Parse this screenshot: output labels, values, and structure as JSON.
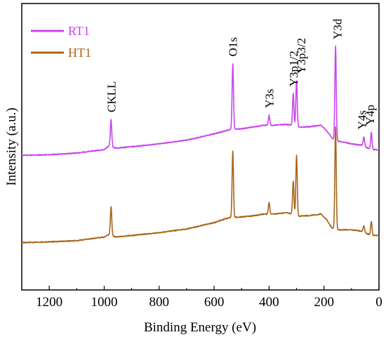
{
  "chart_data": {
    "type": "line",
    "xlabel": "Binding Energy (eV)",
    "ylabel": "Intensity (a.u.)",
    "xlim": [
      1300,
      0
    ],
    "x_reversed": true,
    "xticks": [
      1200,
      1000,
      800,
      600,
      400,
      200,
      0
    ],
    "ylim": [
      0,
      100
    ],
    "yticks_shown": false,
    "grid": false,
    "legend_position": "top-left",
    "series": [
      {
        "name": "RT1",
        "color": "#cc44ee",
        "baseline": [
          [
            1300,
            47.0
          ],
          [
            1200,
            47.2
          ],
          [
            1100,
            47.8
          ],
          [
            1000,
            49.0
          ],
          [
            980,
            50.5
          ],
          [
            960,
            49.5
          ],
          [
            900,
            50.0
          ],
          [
            800,
            51.0
          ],
          [
            700,
            52.3
          ],
          [
            600,
            54.5
          ],
          [
            560,
            55.5
          ],
          [
            540,
            56.0
          ],
          [
            500,
            56.3
          ],
          [
            450,
            57.0
          ],
          [
            420,
            57.5
          ],
          [
            380,
            57.5
          ],
          [
            340,
            57.8
          ],
          [
            310,
            57.5
          ],
          [
            290,
            56.8
          ],
          [
            250,
            57.0
          ],
          [
            210,
            57.5
          ],
          [
            190,
            55.5
          ],
          [
            170,
            53.0
          ],
          [
            150,
            52.0
          ],
          [
            100,
            51.0
          ],
          [
            60,
            50.5
          ],
          [
            40,
            49.5
          ],
          [
            20,
            49.0
          ],
          [
            0,
            49.0
          ]
        ],
        "peaks": [
          {
            "x": 975,
            "y": 59.5
          },
          {
            "x": 532,
            "y": 79.0
          },
          {
            "x": 400,
            "y": 61.0
          },
          {
            "x": 312,
            "y": 68.5
          },
          {
            "x": 300,
            "y": 73.0
          },
          {
            "x": 158,
            "y": 85.0
          },
          {
            "x": 55,
            "y": 53.5
          },
          {
            "x": 28,
            "y": 55.0
          }
        ]
      },
      {
        "name": "HT1",
        "color": "#a8651a",
        "baseline": [
          [
            1300,
            16.5
          ],
          [
            1200,
            16.8
          ],
          [
            1100,
            17.2
          ],
          [
            1000,
            18.5
          ],
          [
            980,
            19.5
          ],
          [
            960,
            18.5
          ],
          [
            900,
            19.0
          ],
          [
            800,
            20.0
          ],
          [
            700,
            21.3
          ],
          [
            600,
            23.5
          ],
          [
            560,
            24.8
          ],
          [
            540,
            25.3
          ],
          [
            500,
            25.5
          ],
          [
            450,
            26.0
          ],
          [
            420,
            26.5
          ],
          [
            380,
            26.5
          ],
          [
            340,
            27.0
          ],
          [
            310,
            26.5
          ],
          [
            290,
            25.8
          ],
          [
            250,
            26.0
          ],
          [
            210,
            26.5
          ],
          [
            190,
            24.5
          ],
          [
            170,
            21.5
          ],
          [
            150,
            21.0
          ],
          [
            100,
            21.0
          ],
          [
            60,
            20.5
          ],
          [
            40,
            19.5
          ],
          [
            20,
            19.0
          ],
          [
            0,
            19.0
          ]
        ],
        "peaks": [
          {
            "x": 975,
            "y": 29.0
          },
          {
            "x": 532,
            "y": 48.5
          },
          {
            "x": 400,
            "y": 30.5
          },
          {
            "x": 312,
            "y": 38.0
          },
          {
            "x": 300,
            "y": 47.0
          },
          {
            "x": 158,
            "y": 57.0
          },
          {
            "x": 55,
            "y": 22.5
          },
          {
            "x": 28,
            "y": 24.0
          }
        ]
      }
    ],
    "annotations": [
      {
        "text": "CKLL",
        "x": 975,
        "y": 62,
        "rotate": true
      },
      {
        "text": "O1s",
        "x": 532,
        "y": 81.5,
        "rotate": true
      },
      {
        "text": "Y3s",
        "x": 400,
        "y": 63.5,
        "rotate": true
      },
      {
        "text": "Y3p1/2",
        "x": 312,
        "y": 71,
        "rotate": true
      },
      {
        "text": "Y3p3/2",
        "x": 284,
        "y": 75.5,
        "rotate": true
      },
      {
        "text": "Y3d",
        "x": 152,
        "y": 87.5,
        "rotate": true
      },
      {
        "text": "Y4s",
        "x": 63,
        "y": 56,
        "rotate": true
      },
      {
        "text": "Y4p",
        "x": 33,
        "y": 57.5,
        "rotate": true
      }
    ]
  }
}
